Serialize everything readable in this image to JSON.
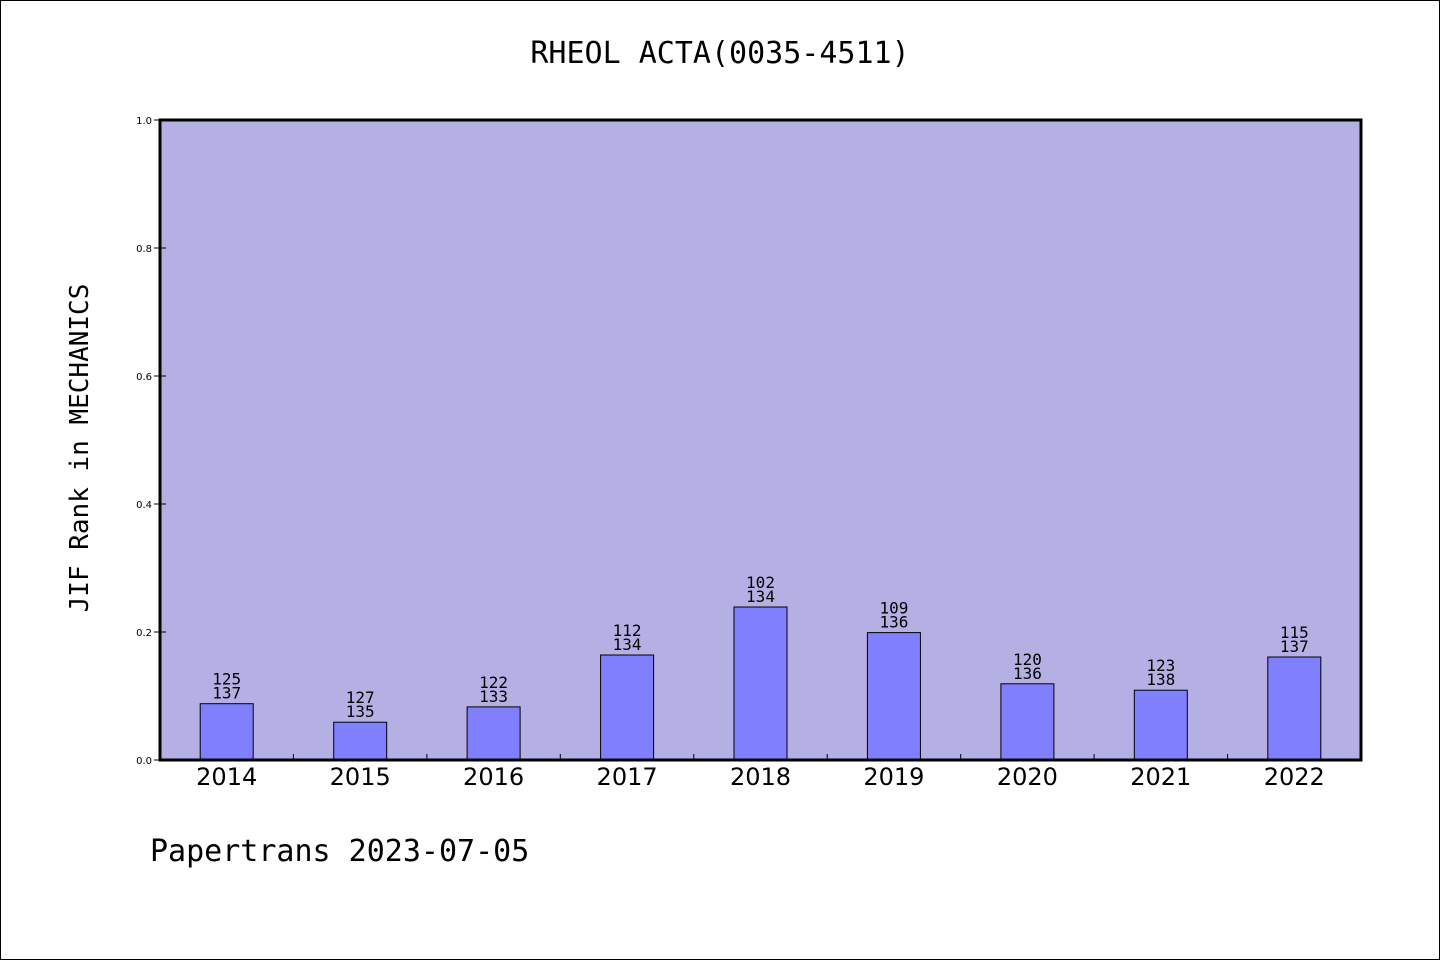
{
  "chart_data": {
    "type": "bar",
    "title": "RHEOL ACTA(0035-4511)",
    "ylabel": "JIF Rank in MECHANICS",
    "xlabel": "",
    "footer": "Papertrans 2023-07-05",
    "ylim": [
      0.0,
      1.0
    ],
    "yticks": [
      "0.0",
      "0.2",
      "0.4",
      "0.6",
      "0.8",
      "1.0"
    ],
    "categories": [
      "2014",
      "2015",
      "2016",
      "2017",
      "2018",
      "2019",
      "2020",
      "2021",
      "2022"
    ],
    "values": [
      0.088,
      0.059,
      0.083,
      0.164,
      0.239,
      0.199,
      0.119,
      0.109,
      0.161
    ],
    "rank": [
      "125",
      "127",
      "122",
      "112",
      "102",
      "109",
      "120",
      "123",
      "115"
    ],
    "total": [
      "137",
      "135",
      "133",
      "134",
      "134",
      "136",
      "136",
      "138",
      "137"
    ],
    "grid": false,
    "colors": {
      "plot_background": "#b5b0e3",
      "bar_fill": "#8080ff",
      "bar_stroke": "#000000"
    }
  }
}
